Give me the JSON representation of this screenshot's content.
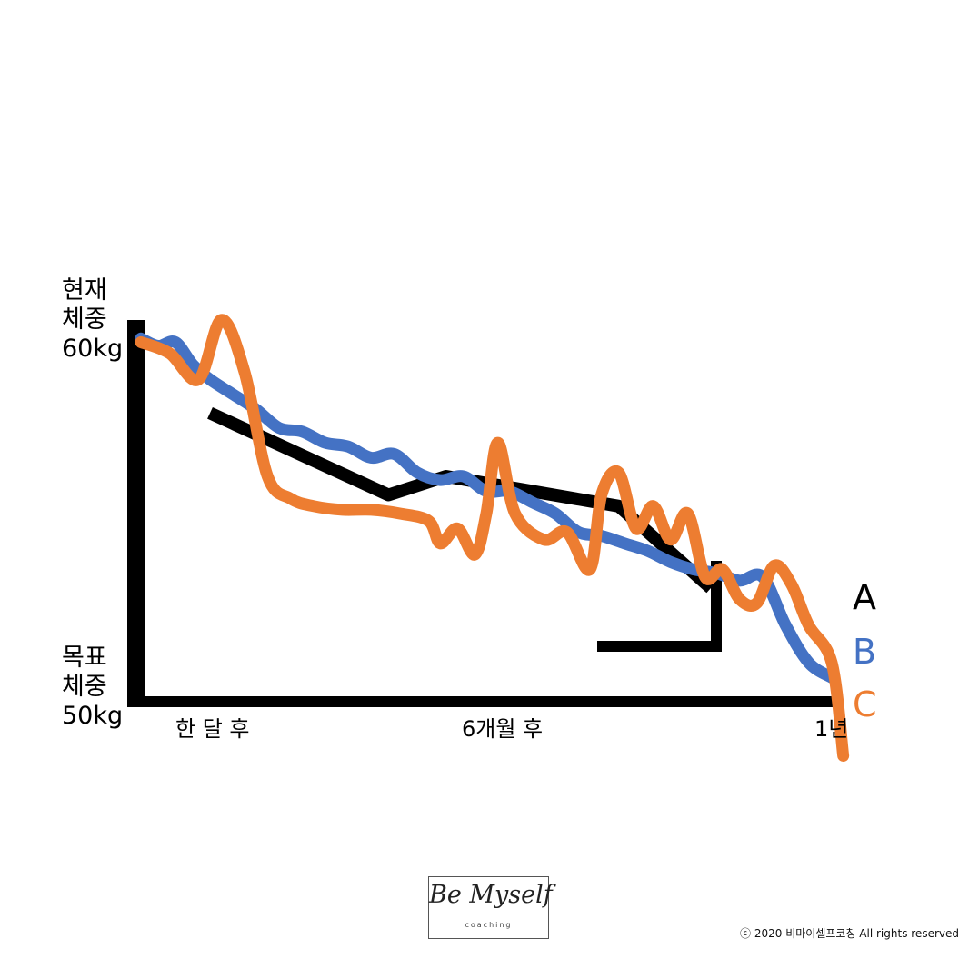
{
  "y_axis": {
    "top_label": "현재\n체중\n60kg",
    "bottom_label": "목표\n체중\n50kg"
  },
  "x_axis": {
    "ticks": [
      "한 달 후",
      "6개월 후",
      "1년"
    ]
  },
  "legend": [
    "A",
    "B",
    "C"
  ],
  "colors": {
    "A": "#000000",
    "B": "#4472c4",
    "C": "#ed7d31",
    "axis": "#000000"
  },
  "chart_data": {
    "type": "line",
    "xlim": [
      0,
      12
    ],
    "ylim": [
      50,
      60
    ],
    "ylabel_top": "현재 체중 60kg",
    "ylabel_bottom": "목표 체중 50kg",
    "xticks": [
      {
        "x": 1,
        "label": "한 달 후"
      },
      {
        "x": 6,
        "label": "6개월 후"
      },
      {
        "x": 12,
        "label": "1년"
      }
    ],
    "grid": false,
    "legend_position": "right",
    "series": [
      {
        "name": "A",
        "x": [
          1.2,
          4.3,
          5.3,
          8.3,
          9.9
        ],
        "y": [
          57.7,
          55.5,
          56.0,
          55.2,
          53.0
        ]
      },
      {
        "name": "B",
        "x": [
          0,
          0.3,
          0.6,
          0.9,
          1.2,
          1.6,
          2.0,
          2.4,
          2.8,
          3.2,
          3.6,
          4.0,
          4.4,
          4.8,
          5.2,
          5.6,
          6.0,
          6.4,
          6.8,
          7.2,
          7.6,
          8.0,
          8.4,
          8.8,
          9.2,
          9.6,
          10.0,
          10.4,
          10.8,
          11.2,
          11.6,
          12.0
        ],
        "y": [
          59.7,
          59.5,
          59.6,
          59.0,
          58.6,
          58.2,
          57.8,
          57.3,
          57.2,
          56.9,
          56.8,
          56.5,
          56.6,
          56.1,
          55.9,
          56.0,
          55.6,
          55.6,
          55.3,
          55.0,
          54.5,
          54.4,
          54.2,
          54.0,
          53.7,
          53.5,
          53.4,
          53.2,
          53.3,
          52.0,
          51.0,
          50.6
        ]
      },
      {
        "name": "C",
        "x": [
          0,
          0.5,
          1.0,
          1.4,
          1.8,
          2.2,
          2.6,
          3.0,
          3.5,
          4.0,
          4.5,
          5.0,
          5.2,
          5.5,
          5.8,
          6.0,
          6.2,
          6.5,
          7.0,
          7.4,
          7.8,
          8.0,
          8.3,
          8.6,
          8.9,
          9.2,
          9.5,
          9.8,
          10.1,
          10.4,
          10.7,
          11.0,
          11.3,
          11.6,
          12.0,
          12.2
        ],
        "y": [
          59.6,
          59.3,
          58.6,
          60.2,
          58.8,
          56.0,
          55.4,
          55.2,
          55.1,
          55.1,
          55.0,
          54.8,
          54.2,
          54.6,
          53.9,
          55.0,
          56.9,
          55.0,
          54.3,
          54.5,
          53.5,
          55.5,
          56.1,
          54.6,
          55.2,
          54.3,
          55.0,
          53.3,
          53.5,
          52.7,
          52.6,
          53.6,
          53.1,
          52.0,
          51.0,
          48.5
        ]
      }
    ]
  },
  "logo": {
    "script": "Be Myself",
    "sub": "coaching"
  },
  "copyright": "ⓒ 2020 비마이셀프코칭 All rights reserved"
}
